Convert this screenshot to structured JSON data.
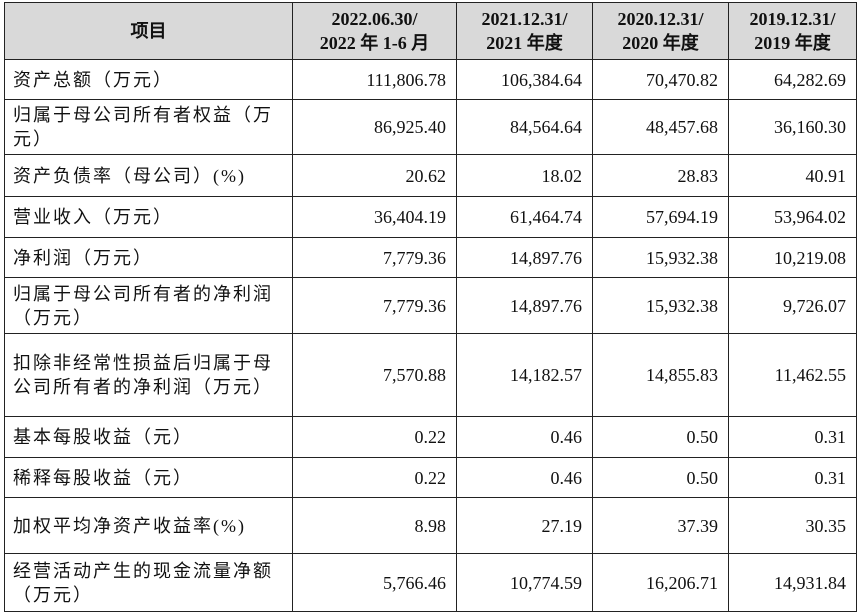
{
  "table": {
    "header": [
      [
        "项目"
      ],
      [
        "2022.06.30/",
        "2022 年 1-6 月"
      ],
      [
        "2021.12.31/",
        "2021 年度"
      ],
      [
        "2020.12.31/",
        "2020 年度"
      ],
      [
        "2019.12.31/",
        "2019 年度"
      ]
    ],
    "rows": [
      [
        "资产总额（万元）",
        "111,806.78",
        "106,384.64",
        "70,470.82",
        "64,282.69"
      ],
      [
        "归属于母公司所有者权益（万元）",
        "86,925.40",
        "84,564.64",
        "48,457.68",
        "36,160.30"
      ],
      [
        "资产负债率（母公司）(%)",
        "20.62",
        "18.02",
        "28.83",
        "40.91"
      ],
      [
        "营业收入（万元）",
        "36,404.19",
        "61,464.74",
        "57,694.19",
        "53,964.02"
      ],
      [
        "净利润（万元）",
        "7,779.36",
        "14,897.76",
        "15,932.38",
        "10,219.08"
      ],
      [
        "归属于母公司所有者的净利润（万元）",
        "7,779.36",
        "14,897.76",
        "15,932.38",
        "9,726.07"
      ],
      [
        "扣除非经常性损益后归属于母公司所有者的净利润（万元）",
        "7,570.88",
        "14,182.57",
        "14,855.83",
        "11,462.55"
      ],
      [
        "基本每股收益（元）",
        "0.22",
        "0.46",
        "0.50",
        "0.31"
      ],
      [
        "稀释每股收益（元）",
        "0.22",
        "0.46",
        "0.50",
        "0.31"
      ],
      [
        "加权平均净资产收益率(%)",
        "8.98",
        "27.19",
        "37.39",
        "30.35"
      ],
      [
        "经营活动产生的现金流量净额（万元）",
        "5,766.46",
        "10,774.59",
        "16,206.71",
        "14,931.84"
      ]
    ]
  }
}
